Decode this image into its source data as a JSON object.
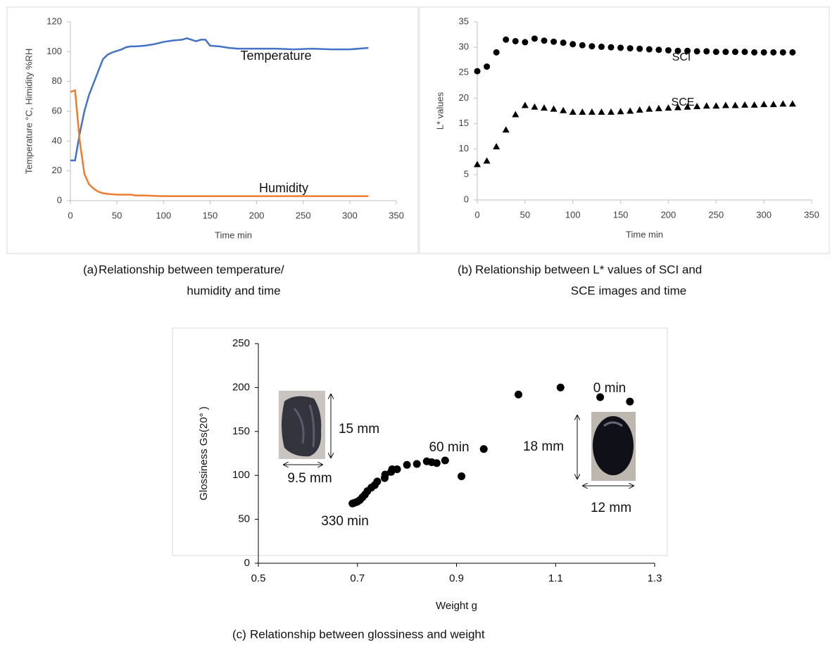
{
  "chart_data": [
    {
      "type": "line",
      "label": "(a)",
      "caption": [
        "Relationship between temperature/",
        "humidity and time"
      ],
      "xlabel": "Time min",
      "ylabel": "Temperature °C, Himidity %RH",
      "annotations": [
        "Temperature",
        "Humidity"
      ],
      "x": [
        0,
        5,
        10,
        15,
        20,
        25,
        30,
        35,
        40,
        45,
        50,
        55,
        60,
        65,
        70,
        80,
        90,
        100,
        110,
        120,
        125,
        130,
        135,
        140,
        145,
        150,
        160,
        170,
        180,
        200,
        220,
        240,
        260,
        280,
        300,
        320
      ],
      "series": [
        {
          "name": "Temperature",
          "color": "#4472c4",
          "values": [
            27,
            27,
            45,
            60,
            71,
            79,
            87,
            95,
            98,
            99.5,
            100.5,
            101.5,
            103,
            103.5,
            103.5,
            104,
            105,
            106.5,
            107.5,
            108,
            109,
            108,
            107,
            108,
            108,
            104,
            103.5,
            102.5,
            102,
            102,
            102,
            101.5,
            102,
            101.5,
            101.5,
            102.5
          ]
        },
        {
          "name": "Humidity",
          "color": "#ed7d31",
          "values": [
            73,
            74,
            40,
            18,
            11,
            8,
            6,
            5,
            4.5,
            4.3,
            4,
            4,
            4,
            4,
            3.5,
            3.5,
            3.2,
            3,
            3,
            3,
            3,
            3,
            3,
            3,
            3,
            3,
            3,
            3,
            3,
            3,
            3,
            3,
            3,
            3,
            3,
            3
          ]
        }
      ],
      "xlim": [
        0,
        350
      ],
      "xticks": [
        0,
        50,
        100,
        150,
        200,
        250,
        300,
        350
      ],
      "ylim": [
        0,
        120
      ],
      "yticks": [
        0,
        20,
        40,
        60,
        80,
        100,
        120
      ]
    },
    {
      "type": "scatter",
      "label": "(b)",
      "caption": [
        "Relationship between L* values of SCI and",
        "SCE images and time"
      ],
      "xlabel": "Time min",
      "ylabel": "L* values",
      "annotations": [
        "SCI",
        "SCE"
      ],
      "x": [
        0,
        10,
        20,
        30,
        40,
        50,
        60,
        70,
        80,
        90,
        100,
        110,
        120,
        130,
        140,
        150,
        160,
        170,
        180,
        190,
        200,
        210,
        220,
        230,
        240,
        250,
        260,
        270,
        280,
        290,
        300,
        310,
        320,
        330
      ],
      "series": [
        {
          "name": "SCI",
          "color": "#000000",
          "marker": "circle",
          "values": [
            25.3,
            26.2,
            29,
            31.5,
            31.2,
            31,
            31.7,
            31.3,
            31.1,
            30.9,
            30.6,
            30.4,
            30.2,
            30.1,
            30,
            29.9,
            29.8,
            29.7,
            29.6,
            29.5,
            29.4,
            29.3,
            29.3,
            29.2,
            29.2,
            29.1,
            29.1,
            29.1,
            29.1,
            29,
            29,
            29,
            29,
            29
          ]
        },
        {
          "name": "SCE",
          "color": "#000000",
          "marker": "triangle",
          "values": [
            7,
            7.7,
            10.5,
            13.8,
            16.8,
            18.6,
            18.3,
            18.1,
            17.9,
            17.6,
            17.3,
            17.3,
            17.3,
            17.3,
            17.3,
            17.4,
            17.5,
            17.7,
            17.9,
            18,
            18.1,
            18.2,
            18.3,
            18.4,
            18.5,
            18.5,
            18.6,
            18.6,
            18.7,
            18.7,
            18.8,
            18.8,
            18.9,
            18.9
          ]
        }
      ],
      "xlim": [
        0,
        350
      ],
      "xticks": [
        0,
        50,
        100,
        150,
        200,
        250,
        300,
        350
      ],
      "ylim": [
        0,
        35
      ],
      "yticks": [
        0,
        5,
        10,
        15,
        20,
        25,
        30,
        35
      ]
    },
    {
      "type": "scatter",
      "label": "(c)",
      "caption": [
        "Relationship between glossiness and weight"
      ],
      "xlabel": "Weight g",
      "ylabel": "Glossiness Gs(20° )",
      "annotations": [
        "0 min",
        "60 min",
        "330 min",
        "15 mm",
        "9.5 mm",
        "18 mm",
        "12 mm"
      ],
      "x": [
        1.25,
        1.19,
        1.11,
        1.025,
        0.955,
        0.91,
        0.877,
        0.86,
        0.85,
        0.84,
        0.82,
        0.8,
        0.78,
        0.77,
        0.768,
        0.756,
        0.755,
        0.74,
        0.735,
        0.728,
        0.72,
        0.715,
        0.71,
        0.705,
        0.7,
        0.695,
        0.69
      ],
      "series": [
        {
          "color": "#000000",
          "marker": "circle",
          "values": [
            184,
            189,
            200,
            192,
            130,
            99,
            117,
            114,
            115,
            116,
            113,
            112,
            107,
            107,
            104,
            101,
            97,
            93,
            89,
            86,
            82,
            78,
            75,
            72,
            70,
            69,
            68
          ]
        }
      ],
      "xlim": [
        0.5,
        1.3
      ],
      "xticks": [
        0.5,
        0.7,
        0.9,
        1.1,
        1.3
      ],
      "ylim": [
        0,
        250
      ],
      "yticks": [
        0,
        50,
        100,
        150,
        200,
        250
      ]
    }
  ]
}
